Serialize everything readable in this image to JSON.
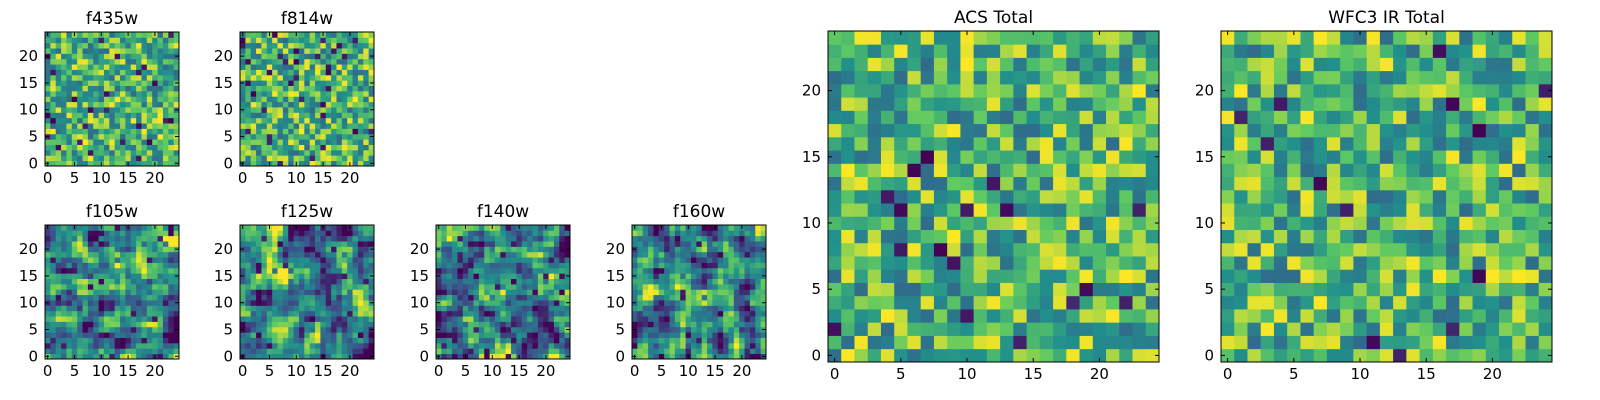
{
  "figure": {
    "background": "#ffffff",
    "colormap": "viridis",
    "colors": [
      "#440154",
      "#3b528b",
      "#21908c",
      "#5ec962",
      "#fde725"
    ]
  },
  "chart_data": [
    {
      "type": "heatmap",
      "id": "f435w",
      "title": "f435w",
      "grid_size": 25,
      "xlim": [
        0,
        24
      ],
      "ylim": [
        0,
        24
      ],
      "xticks": [
        0,
        5,
        10,
        15,
        20
      ],
      "yticks": [
        0,
        5,
        10,
        15,
        20
      ],
      "xtick_labels": [
        "0",
        "5",
        "10",
        "15",
        "20"
      ],
      "ytick_labels": [
        "0",
        "5",
        "10",
        "15",
        "20"
      ],
      "value_range": [
        0,
        1
      ],
      "seed": 11,
      "pattern": "noisy"
    },
    {
      "type": "heatmap",
      "id": "f814w",
      "title": "f814w",
      "grid_size": 25,
      "xlim": [
        0,
        24
      ],
      "ylim": [
        0,
        24
      ],
      "xticks": [
        0,
        5,
        10,
        15,
        20
      ],
      "yticks": [
        0,
        5,
        10,
        15,
        20
      ],
      "xtick_labels": [
        "0",
        "5",
        "10",
        "15",
        "20"
      ],
      "ytick_labels": [
        "0",
        "5",
        "10",
        "15",
        "20"
      ],
      "value_range": [
        0,
        1
      ],
      "seed": 23,
      "pattern": "noisy"
    },
    {
      "type": "heatmap",
      "id": "f105w",
      "title": "f105w",
      "grid_size": 25,
      "xlim": [
        0,
        24
      ],
      "ylim": [
        0,
        24
      ],
      "xticks": [
        0,
        5,
        10,
        15,
        20
      ],
      "yticks": [
        0,
        5,
        10,
        15,
        20
      ],
      "xtick_labels": [
        "0",
        "5",
        "10",
        "15",
        "20"
      ],
      "ytick_labels": [
        "0",
        "5",
        "10",
        "15",
        "20"
      ],
      "value_range": [
        0,
        1
      ],
      "seed": 37,
      "pattern": "smooth"
    },
    {
      "type": "heatmap",
      "id": "f125w",
      "title": "f125w",
      "grid_size": 25,
      "xlim": [
        0,
        24
      ],
      "ylim": [
        0,
        24
      ],
      "xticks": [
        0,
        5,
        10,
        15,
        20
      ],
      "yticks": [
        0,
        5,
        10,
        15,
        20
      ],
      "xtick_labels": [
        "0",
        "5",
        "10",
        "15",
        "20"
      ],
      "ytick_labels": [
        "0",
        "5",
        "10",
        "15",
        "20"
      ],
      "value_range": [
        0,
        1
      ],
      "seed": 41,
      "pattern": "smooth"
    },
    {
      "type": "heatmap",
      "id": "f140w",
      "title": "f140w",
      "grid_size": 25,
      "xlim": [
        0,
        24
      ],
      "ylim": [
        0,
        24
      ],
      "xticks": [
        0,
        5,
        10,
        15,
        20
      ],
      "yticks": [
        0,
        5,
        10,
        15,
        20
      ],
      "xtick_labels": [
        "0",
        "5",
        "10",
        "15",
        "20"
      ],
      "ytick_labels": [
        "0",
        "5",
        "10",
        "15",
        "20"
      ],
      "value_range": [
        0,
        1
      ],
      "seed": 53,
      "pattern": "smooth"
    },
    {
      "type": "heatmap",
      "id": "f160w",
      "title": "f160w",
      "grid_size": 25,
      "xlim": [
        0,
        24
      ],
      "ylim": [
        0,
        24
      ],
      "xticks": [
        0,
        5,
        10,
        15,
        20
      ],
      "yticks": [
        0,
        5,
        10,
        15,
        20
      ],
      "xtick_labels": [
        "0",
        "5",
        "10",
        "15",
        "20"
      ],
      "ytick_labels": [
        "0",
        "5",
        "10",
        "15",
        "20"
      ],
      "value_range": [
        0,
        1
      ],
      "seed": 67,
      "pattern": "smooth"
    },
    {
      "type": "heatmap",
      "id": "acs-total",
      "title": "ACS Total",
      "grid_size": 25,
      "xlim": [
        0,
        24
      ],
      "ylim": [
        0,
        24
      ],
      "xticks": [
        0,
        5,
        10,
        15,
        20
      ],
      "yticks": [
        0,
        5,
        10,
        15,
        20
      ],
      "xtick_labels": [
        "0",
        "5",
        "10",
        "15",
        "20"
      ],
      "ytick_labels": [
        "0",
        "5",
        "10",
        "15",
        "20"
      ],
      "value_range": [
        0,
        1
      ],
      "seed": 79,
      "pattern": "blocky"
    },
    {
      "type": "heatmap",
      "id": "wfc3-ir-total",
      "title": "WFC3 IR Total",
      "grid_size": 25,
      "xlim": [
        0,
        24
      ],
      "ylim": [
        0,
        24
      ],
      "xticks": [
        0,
        5,
        10,
        15,
        20
      ],
      "yticks": [
        0,
        5,
        10,
        15,
        20
      ],
      "xtick_labels": [
        "0",
        "5",
        "10",
        "15",
        "20"
      ],
      "ytick_labels": [
        "0",
        "5",
        "10",
        "15",
        "20"
      ],
      "value_range": [
        0,
        1
      ],
      "seed": 97,
      "pattern": "blocky"
    }
  ]
}
